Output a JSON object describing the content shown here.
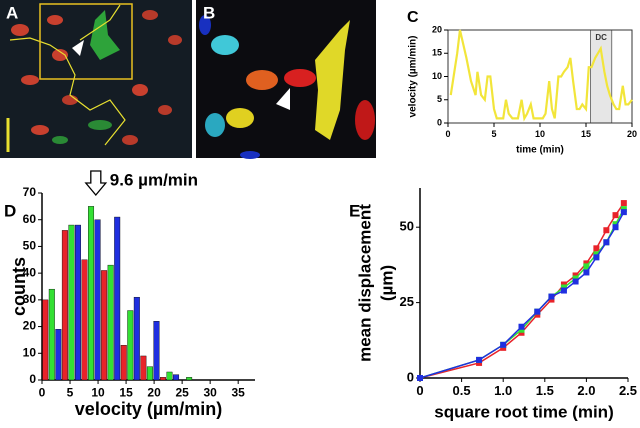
{
  "panels": {
    "a": "A",
    "b": "B"
  },
  "chart_data": [
    {
      "type": "line",
      "label": "C",
      "xlabel": "time (min)",
      "ylabel": "velocity (µm/min)",
      "xlim": [
        0,
        20
      ],
      "ylim": [
        0,
        20
      ],
      "xticks": [
        0,
        5,
        10,
        15,
        20
      ],
      "yticks": [
        0,
        5,
        10,
        15,
        20
      ],
      "shade": {
        "x": [
          15.5,
          17.8
        ],
        "label": "DC",
        "color": "#e6e6e6"
      },
      "series": [
        {
          "color": "#f2e53a",
          "x": [
            0.3,
            1,
            1.3,
            2,
            2.5,
            3,
            3.2,
            3.6,
            4,
            4.3,
            4.6,
            5,
            5.3,
            5.6,
            6,
            6.3,
            6.6,
            7,
            7.3,
            7.6,
            8,
            8.3,
            8.6,
            9,
            9.3,
            9.6,
            10,
            10.3,
            10.6,
            11,
            11.3,
            11.6,
            12,
            12.3,
            12.6,
            13,
            13.3,
            13.6,
            14,
            14.3,
            14.6,
            15,
            15.3,
            15.6,
            16,
            16.3,
            16.6,
            17,
            17.3,
            17.6,
            18,
            18.3,
            18.6,
            19,
            19.3,
            19.6,
            20
          ],
          "values": [
            6,
            15,
            20,
            14,
            9,
            6,
            11,
            6,
            5,
            10,
            10,
            3,
            1,
            1,
            1,
            5,
            2,
            1,
            1,
            1,
            5,
            1,
            2,
            4,
            1,
            1,
            1,
            1,
            2,
            9,
            3,
            1,
            10,
            10,
            11,
            12,
            14,
            9,
            3,
            3,
            4,
            3,
            12,
            12,
            14,
            15,
            16,
            11,
            8,
            6,
            4,
            3,
            3,
            8,
            4,
            4,
            5
          ]
        }
      ]
    },
    {
      "type": "bar",
      "label": "D",
      "xlabel": "velocity (µm/min)",
      "ylabel": "counts",
      "xlim": [
        0,
        38
      ],
      "ylim": [
        0,
        70
      ],
      "xticks": [
        0,
        5,
        10,
        15,
        20,
        25,
        30,
        35
      ],
      "yticks": [
        0,
        10,
        20,
        30,
        40,
        50,
        60,
        70
      ],
      "annotation": {
        "text": "9.6 µm/min",
        "x": 9.6
      },
      "x": [
        1.75,
        5.25,
        8.75,
        12.25,
        15.75,
        19.25,
        22.75,
        26.25
      ],
      "series": [
        {
          "color": "#e8232a",
          "values": [
            30,
            56,
            45,
            41,
            13,
            9,
            1,
            0
          ]
        },
        {
          "color": "#33e033",
          "values": [
            34,
            58,
            65,
            43,
            26,
            5,
            3,
            1
          ]
        },
        {
          "color": "#1f2fe0",
          "values": [
            19,
            58,
            60,
            61,
            31,
            22,
            2,
            0
          ]
        }
      ]
    },
    {
      "type": "line",
      "label": "E",
      "xlabel": "square root time (min)",
      "ylabel": [
        "mean displacement",
        "(µm)"
      ],
      "marker": "square",
      "xlim": [
        0,
        2.5
      ],
      "ylim": [
        0,
        63
      ],
      "xticks": [
        0,
        0.5,
        {
          "value": 1,
          "label": "1.0"
        },
        1.5,
        {
          "value": 2,
          "label": "2.0"
        },
        2.5
      ],
      "yticks": [
        0,
        25,
        50
      ],
      "series": [
        {
          "color": "#e8232a",
          "x": [
            0,
            0.71,
            1,
            1.22,
            1.41,
            1.58,
            1.73,
            1.87,
            2,
            2.12,
            2.24,
            2.35,
            2.45
          ],
          "values": [
            0,
            5,
            10,
            15,
            21,
            26,
            31,
            34,
            38,
            43,
            49,
            54,
            58
          ]
        },
        {
          "color": "#33e033",
          "x": [
            0,
            0.71,
            1,
            1.22,
            1.41,
            1.58,
            1.73,
            1.87,
            2,
            2.12,
            2.24,
            2.35,
            2.45
          ],
          "values": [
            0,
            6,
            11,
            16,
            22,
            27,
            30,
            33,
            37,
            41,
            45,
            51,
            56
          ]
        },
        {
          "color": "#1f2fe0",
          "x": [
            0,
            0.71,
            1,
            1.22,
            1.41,
            1.58,
            1.73,
            1.87,
            2,
            2.12,
            2.24,
            2.35,
            2.45
          ],
          "values": [
            0,
            6,
            11,
            17,
            22,
            27,
            29,
            32,
            35,
            40,
            45,
            50,
            55
          ]
        }
      ]
    }
  ]
}
